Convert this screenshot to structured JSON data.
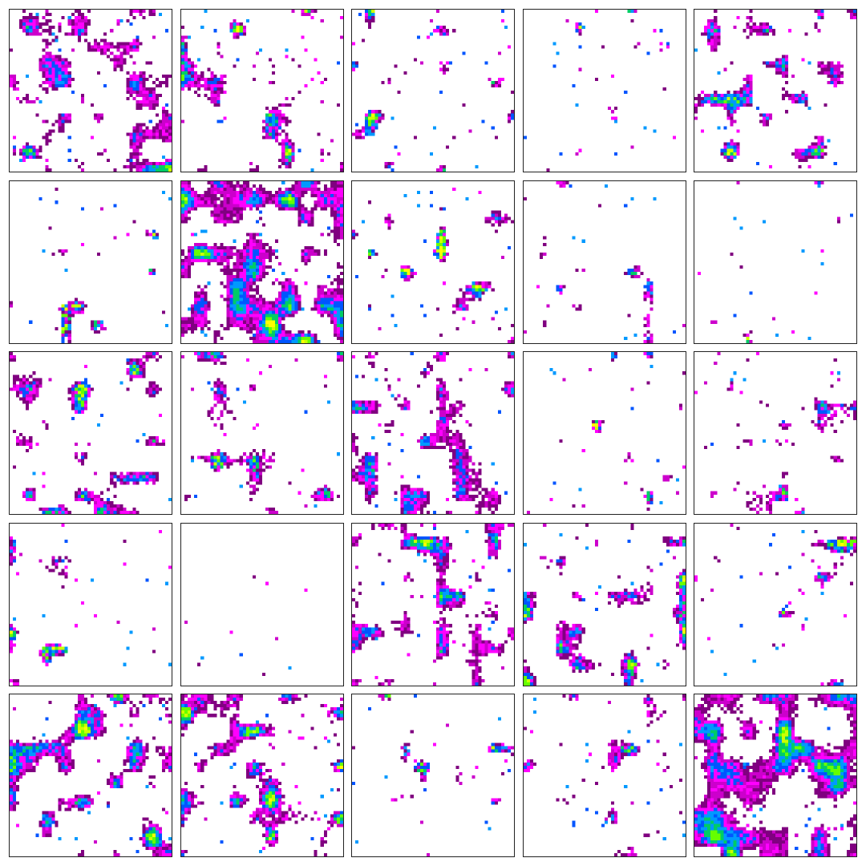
{
  "grid": {
    "rows": 5,
    "cols": 5
  },
  "palette": [
    "#800080",
    "#cc00cc",
    "#ff00ff",
    "#0055ff",
    "#0099ff",
    "#00cc66",
    "#66ff00",
    "#ccff00",
    "#ffff00"
  ],
  "tiles": [
    {
      "density": 0.4,
      "seed": 11
    },
    {
      "density": 0.26,
      "seed": 23
    },
    {
      "density": 0.2,
      "seed": 37
    },
    {
      "density": 0.16,
      "seed": 41
    },
    {
      "density": 0.3,
      "seed": 53
    },
    {
      "density": 0.14,
      "seed": 67
    },
    {
      "density": 0.5,
      "seed": 71
    },
    {
      "density": 0.22,
      "seed": 83
    },
    {
      "density": 0.18,
      "seed": 97
    },
    {
      "density": 0.12,
      "seed": 101
    },
    {
      "density": 0.3,
      "seed": 113
    },
    {
      "density": 0.24,
      "seed": 127
    },
    {
      "density": 0.36,
      "seed": 131
    },
    {
      "density": 0.16,
      "seed": 149
    },
    {
      "density": 0.24,
      "seed": 151
    },
    {
      "density": 0.18,
      "seed": 163
    },
    {
      "density": 0.05,
      "seed": 173
    },
    {
      "density": 0.34,
      "seed": 181
    },
    {
      "density": 0.28,
      "seed": 191
    },
    {
      "density": 0.18,
      "seed": 197
    },
    {
      "density": 0.36,
      "seed": 211
    },
    {
      "density": 0.32,
      "seed": 223
    },
    {
      "density": 0.18,
      "seed": 227
    },
    {
      "density": 0.24,
      "seed": 233
    },
    {
      "density": 0.56,
      "seed": 239
    }
  ]
}
